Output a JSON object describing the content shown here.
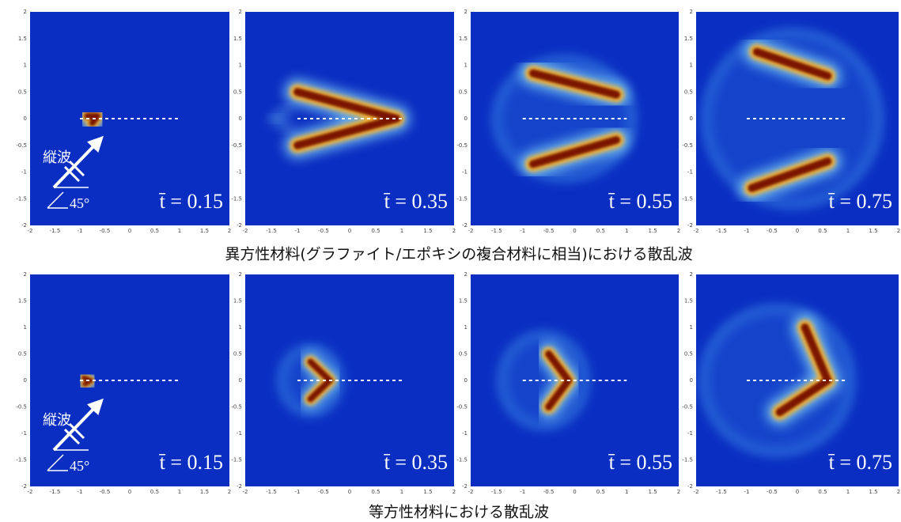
{
  "figure": {
    "rows": [
      {
        "caption": "異方性材料(グラファイト/エポキシの複合材料に相当)における散乱波",
        "panels": [
          {
            "label": "t̄ = 0.15"
          },
          {
            "label": "t̄ = 0.35"
          },
          {
            "label": "t̄ = 0.55"
          },
          {
            "label": "t̄ = 0.75"
          }
        ]
      },
      {
        "caption": "等方性材料における散乱波",
        "panels": [
          {
            "label": "t̄ = 0.15"
          },
          {
            "label": "t̄ = 0.35"
          },
          {
            "label": "t̄ = 0.55"
          },
          {
            "label": "t̄ = 0.75"
          }
        ]
      }
    ],
    "axis_ticks": [
      -2,
      -1.5,
      -1,
      -0.5,
      0,
      0.5,
      1,
      1.5,
      2
    ],
    "inset": {
      "wave": "縦波",
      "angle": "45°"
    }
  }
}
